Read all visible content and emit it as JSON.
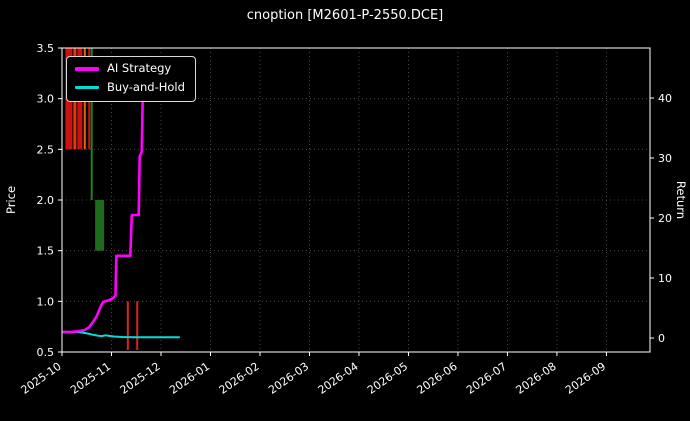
{
  "title": "cnoption [M2601-P-2550.DCE]",
  "chart_data": {
    "type": "line",
    "title": "cnoption [M2601-P-2550.DCE]",
    "background": "#000000",
    "text_color": "#ffffff",
    "grid_color": "#585858",
    "axis_color": "#ffffff",
    "ylabel_left": "Price",
    "ylabel_right": "Return",
    "x_tick_labels": [
      "2025-10",
      "2025-11",
      "2025-12",
      "2026-01",
      "2026-02",
      "2026-03",
      "2026-04",
      "2026-05",
      "2026-06",
      "2026-07",
      "2026-08",
      "2026-09"
    ],
    "x_domain": [
      0,
      11.88
    ],
    "left_ylim": [
      0.5,
      3.5
    ],
    "left_tick_values": [
      0.5,
      1.0,
      1.5,
      2.0,
      2.5,
      3.0,
      3.5
    ],
    "left_tick_labels": [
      "0.5",
      "1.0",
      "1.5",
      "2.0",
      "2.5",
      "3.0",
      "3.5"
    ],
    "right_ylim": [
      -2.33,
      48.33
    ],
    "right_tick_values": [
      0,
      10,
      20,
      30,
      40
    ],
    "right_tick_labels": [
      "0",
      "10",
      "20",
      "30",
      "40"
    ],
    "legend": [
      {
        "label": "AI Strategy",
        "color": "#ff00ff"
      },
      {
        "label": "Buy-and-Hold",
        "color": "#00dddd"
      }
    ],
    "series": [
      {
        "name": "Buy-and-Hold",
        "color": "#00dddd",
        "width": 2,
        "axis": "right",
        "points": [
          [
            0,
            1.0
          ],
          [
            0.1,
            1.05
          ],
          [
            0.2,
            0.98
          ],
          [
            0.3,
            1.0
          ],
          [
            0.42,
            0.9
          ],
          [
            0.52,
            0.75
          ],
          [
            0.62,
            0.55
          ],
          [
            0.72,
            0.4
          ],
          [
            0.8,
            0.32
          ],
          [
            0.88,
            0.45
          ],
          [
            0.95,
            0.35
          ],
          [
            1.05,
            0.25
          ],
          [
            1.2,
            0.17
          ],
          [
            1.5,
            0.13
          ],
          [
            2.38,
            0.13
          ]
        ]
      },
      {
        "name": "AI Strategy",
        "color": "#ff00ff",
        "width": 2.6,
        "axis": "right",
        "points": [
          [
            0,
            1.0
          ],
          [
            0.15,
            1.0
          ],
          [
            0.3,
            1.1
          ],
          [
            0.45,
            1.3
          ],
          [
            0.55,
            1.8
          ],
          [
            0.62,
            2.6
          ],
          [
            0.7,
            3.6
          ],
          [
            0.78,
            5.2
          ],
          [
            0.83,
            6.0
          ],
          [
            0.95,
            6.3
          ],
          [
            1.02,
            6.6
          ],
          [
            1.08,
            7.0
          ],
          [
            1.1,
            13.7
          ],
          [
            1.38,
            13.7
          ],
          [
            1.41,
            20.5
          ],
          [
            1.55,
            20.5
          ],
          [
            1.57,
            30.3
          ],
          [
            1.61,
            31.0
          ],
          [
            1.63,
            39.8
          ],
          [
            1.66,
            40.5
          ],
          [
            1.71,
            47.0
          ]
        ]
      }
    ],
    "bars": [
      {
        "x": 0.14,
        "top": 3.5,
        "bottom": 2.5,
        "color": "#cc1111",
        "width": 7
      },
      {
        "x": 0.26,
        "top": 3.5,
        "bottom": 2.5,
        "color": "#e03a0f",
        "width": 3
      },
      {
        "x": 0.36,
        "top": 3.5,
        "bottom": 2.5,
        "color": "#cc1111",
        "width": 5
      },
      {
        "x": 0.46,
        "top": 3.5,
        "bottom": 2.5,
        "color": "#e0660f",
        "width": 2
      },
      {
        "x": 0.55,
        "top": 3.5,
        "bottom": 2.5,
        "color": "#cc1111",
        "width": 2
      },
      {
        "x": 0.6,
        "top": 3.5,
        "bottom": 2.0,
        "color": "#267d26",
        "width": 2
      },
      {
        "x": 0.76,
        "top": 2.0,
        "bottom": 1.5,
        "color": "#1e6b1e",
        "width": 9
      },
      {
        "x": 1.33,
        "top": 1.0,
        "bottom": 0.52,
        "color": "#dd2222",
        "width": 2
      },
      {
        "x": 1.52,
        "top": 1.0,
        "bottom": 0.52,
        "color": "#dd2222",
        "width": 2
      }
    ]
  }
}
